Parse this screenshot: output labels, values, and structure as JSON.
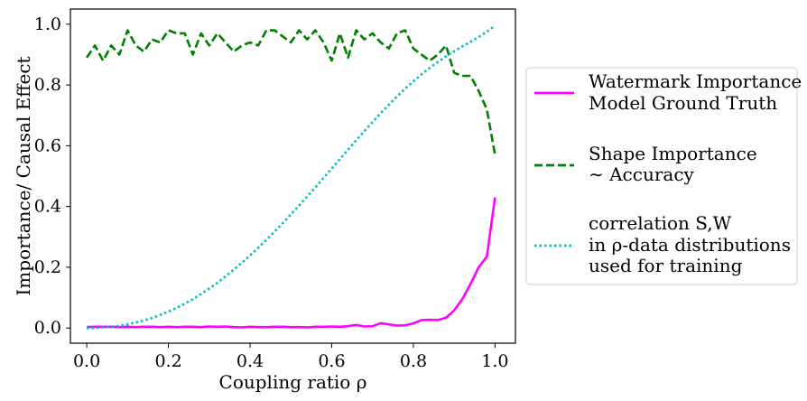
{
  "chart_data": {
    "type": "line",
    "xlabel": "Coupling ratio ρ",
    "ylabel": "Importance/ Causal Effect",
    "xlim": [
      -0.04,
      1.05
    ],
    "ylim": [
      -0.05,
      1.05
    ],
    "x_ticks": [
      0.0,
      0.2,
      0.4,
      0.6,
      0.8,
      1.0
    ],
    "x_tick_labels": [
      "0.0",
      "0.2",
      "0.4",
      "0.6",
      "0.8",
      "1.0"
    ],
    "y_ticks": [
      0.0,
      0.2,
      0.4,
      0.6,
      0.8,
      1.0
    ],
    "y_tick_labels": [
      "0.0",
      "0.2",
      "0.4",
      "0.6",
      "0.8",
      "1.0"
    ],
    "grid": false,
    "legend_position": "outside-right",
    "series": [
      {
        "name": "Watermark Importance Model Ground Truth",
        "legend_lines": [
          "Watermark Importance",
          "Model Ground Truth"
        ],
        "color": "#ff00ff",
        "dash": "solid",
        "x": [
          0.0,
          0.02,
          0.04,
          0.06,
          0.08,
          0.1,
          0.12,
          0.14,
          0.16,
          0.18,
          0.2,
          0.22,
          0.24,
          0.26,
          0.28,
          0.3,
          0.32,
          0.34,
          0.36,
          0.38,
          0.4,
          0.42,
          0.44,
          0.46,
          0.48,
          0.5,
          0.52,
          0.54,
          0.56,
          0.58,
          0.6,
          0.62,
          0.64,
          0.66,
          0.68,
          0.7,
          0.72,
          0.74,
          0.76,
          0.78,
          0.8,
          0.82,
          0.84,
          0.86,
          0.88,
          0.9,
          0.92,
          0.94,
          0.96,
          0.98,
          1.0
        ],
        "y": [
          0.003,
          0.004,
          0.004,
          0.004,
          0.003,
          0.004,
          0.003,
          0.004,
          0.004,
          0.003,
          0.004,
          0.003,
          0.004,
          0.004,
          0.003,
          0.005,
          0.004,
          0.005,
          0.003,
          0.002,
          0.004,
          0.003,
          0.003,
          0.004,
          0.004,
          0.003,
          0.003,
          0.002,
          0.004,
          0.004,
          0.005,
          0.004,
          0.006,
          0.01,
          0.005,
          0.006,
          0.016,
          0.012,
          0.008,
          0.009,
          0.015,
          0.026,
          0.027,
          0.026,
          0.034,
          0.058,
          0.095,
          0.145,
          0.2,
          0.235,
          0.43
        ]
      },
      {
        "name": "Shape Importance ~ Accuracy",
        "legend_lines": [
          "Shape Importance",
          "∼ Accuracy"
        ],
        "color": "#008000",
        "dash": "dashed",
        "x": [
          0.0,
          0.02,
          0.04,
          0.06,
          0.08,
          0.1,
          0.12,
          0.14,
          0.16,
          0.18,
          0.2,
          0.22,
          0.24,
          0.26,
          0.28,
          0.3,
          0.32,
          0.34,
          0.36,
          0.38,
          0.4,
          0.42,
          0.44,
          0.46,
          0.48,
          0.5,
          0.52,
          0.54,
          0.56,
          0.58,
          0.6,
          0.62,
          0.64,
          0.66,
          0.68,
          0.7,
          0.72,
          0.74,
          0.76,
          0.78,
          0.8,
          0.82,
          0.84,
          0.86,
          0.88,
          0.9,
          0.92,
          0.94,
          0.96,
          0.98,
          1.0
        ],
        "y": [
          0.89,
          0.93,
          0.88,
          0.93,
          0.9,
          0.98,
          0.93,
          0.91,
          0.95,
          0.94,
          0.98,
          0.97,
          0.97,
          0.9,
          0.97,
          0.93,
          0.97,
          0.94,
          0.91,
          0.93,
          0.94,
          0.93,
          0.98,
          0.98,
          0.96,
          0.94,
          0.98,
          0.95,
          0.98,
          0.94,
          0.88,
          0.97,
          0.89,
          0.98,
          0.95,
          0.97,
          0.94,
          0.92,
          0.97,
          0.98,
          0.92,
          0.9,
          0.88,
          0.9,
          0.93,
          0.84,
          0.83,
          0.83,
          0.78,
          0.72,
          0.57
        ]
      },
      {
        "name": "correlation S,W in ρ-data distributions used for training",
        "legend_lines": [
          "correlation S,W",
          "in ρ-data distributions",
          "used for training"
        ],
        "color": "#00bfbf",
        "dash": "dotted",
        "x": [
          0.0,
          0.02,
          0.04,
          0.06,
          0.08,
          0.1,
          0.12,
          0.14,
          0.16,
          0.18,
          0.2,
          0.22,
          0.24,
          0.26,
          0.28,
          0.3,
          0.32,
          0.34,
          0.36,
          0.38,
          0.4,
          0.42,
          0.44,
          0.46,
          0.48,
          0.5,
          0.52,
          0.54,
          0.56,
          0.58,
          0.6,
          0.62,
          0.64,
          0.66,
          0.68,
          0.7,
          0.72,
          0.74,
          0.76,
          0.78,
          0.8,
          0.82,
          0.84,
          0.86,
          0.88,
          0.9,
          0.92,
          0.94,
          0.96,
          0.98,
          1.0
        ],
        "y": [
          0.0,
          0.0,
          0.002,
          0.004,
          0.007,
          0.012,
          0.018,
          0.025,
          0.033,
          0.043,
          0.054,
          0.066,
          0.08,
          0.095,
          0.112,
          0.13,
          0.149,
          0.17,
          0.192,
          0.215,
          0.239,
          0.264,
          0.29,
          0.317,
          0.345,
          0.374,
          0.403,
          0.433,
          0.463,
          0.494,
          0.525,
          0.556,
          0.587,
          0.618,
          0.648,
          0.678,
          0.707,
          0.735,
          0.762,
          0.788,
          0.812,
          0.835,
          0.856,
          0.876,
          0.894,
          0.911,
          0.927,
          0.942,
          0.958,
          0.975,
          0.995
        ]
      }
    ]
  }
}
